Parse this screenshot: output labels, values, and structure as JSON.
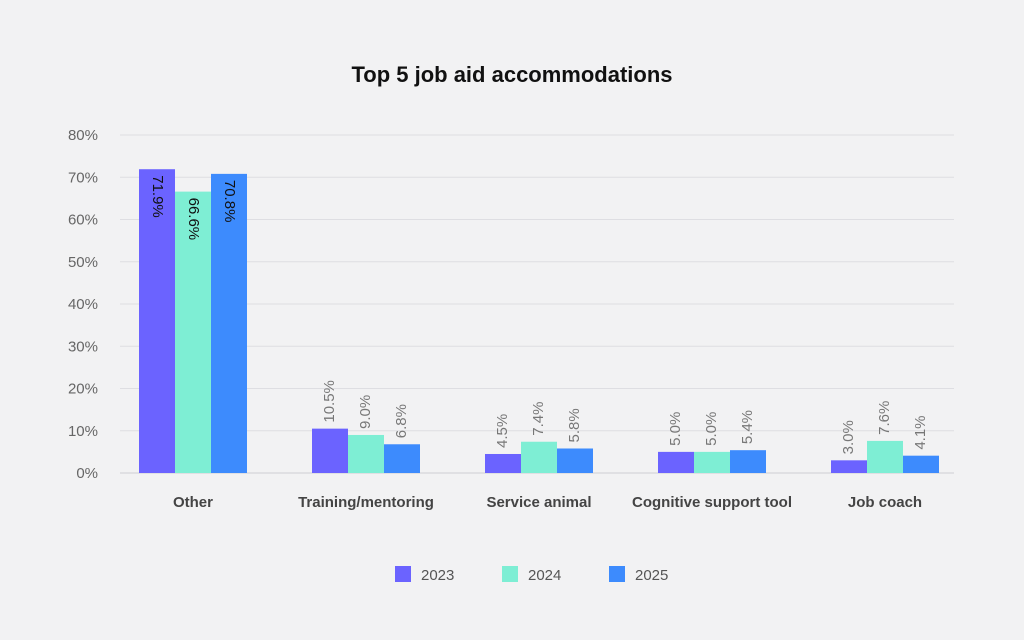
{
  "chart_data": {
    "type": "bar",
    "title": "Top 5 job aid accommodations",
    "categories": [
      "Other",
      "Training/mentoring",
      "Service animal",
      "Cognitive support tool",
      "Job coach"
    ],
    "series": [
      {
        "name": "2023",
        "color": "#6b63ff",
        "values": [
          71.9,
          10.5,
          4.5,
          5.0,
          3.0
        ]
      },
      {
        "name": "2024",
        "color": "#7eeed4",
        "values": [
          66.6,
          9.0,
          7.4,
          5.0,
          7.6
        ]
      },
      {
        "name": "2025",
        "color": "#3d8bfd",
        "values": [
          70.8,
          6.8,
          5.8,
          5.4,
          4.1
        ]
      }
    ],
    "ylim": [
      0,
      80
    ],
    "yticks": [
      0,
      10,
      20,
      30,
      40,
      50,
      60,
      70,
      80
    ],
    "ytick_suffix": "%",
    "value_suffix": "%",
    "grid": true,
    "legend_position": "bottom-center",
    "xlabel": "",
    "ylabel": ""
  }
}
